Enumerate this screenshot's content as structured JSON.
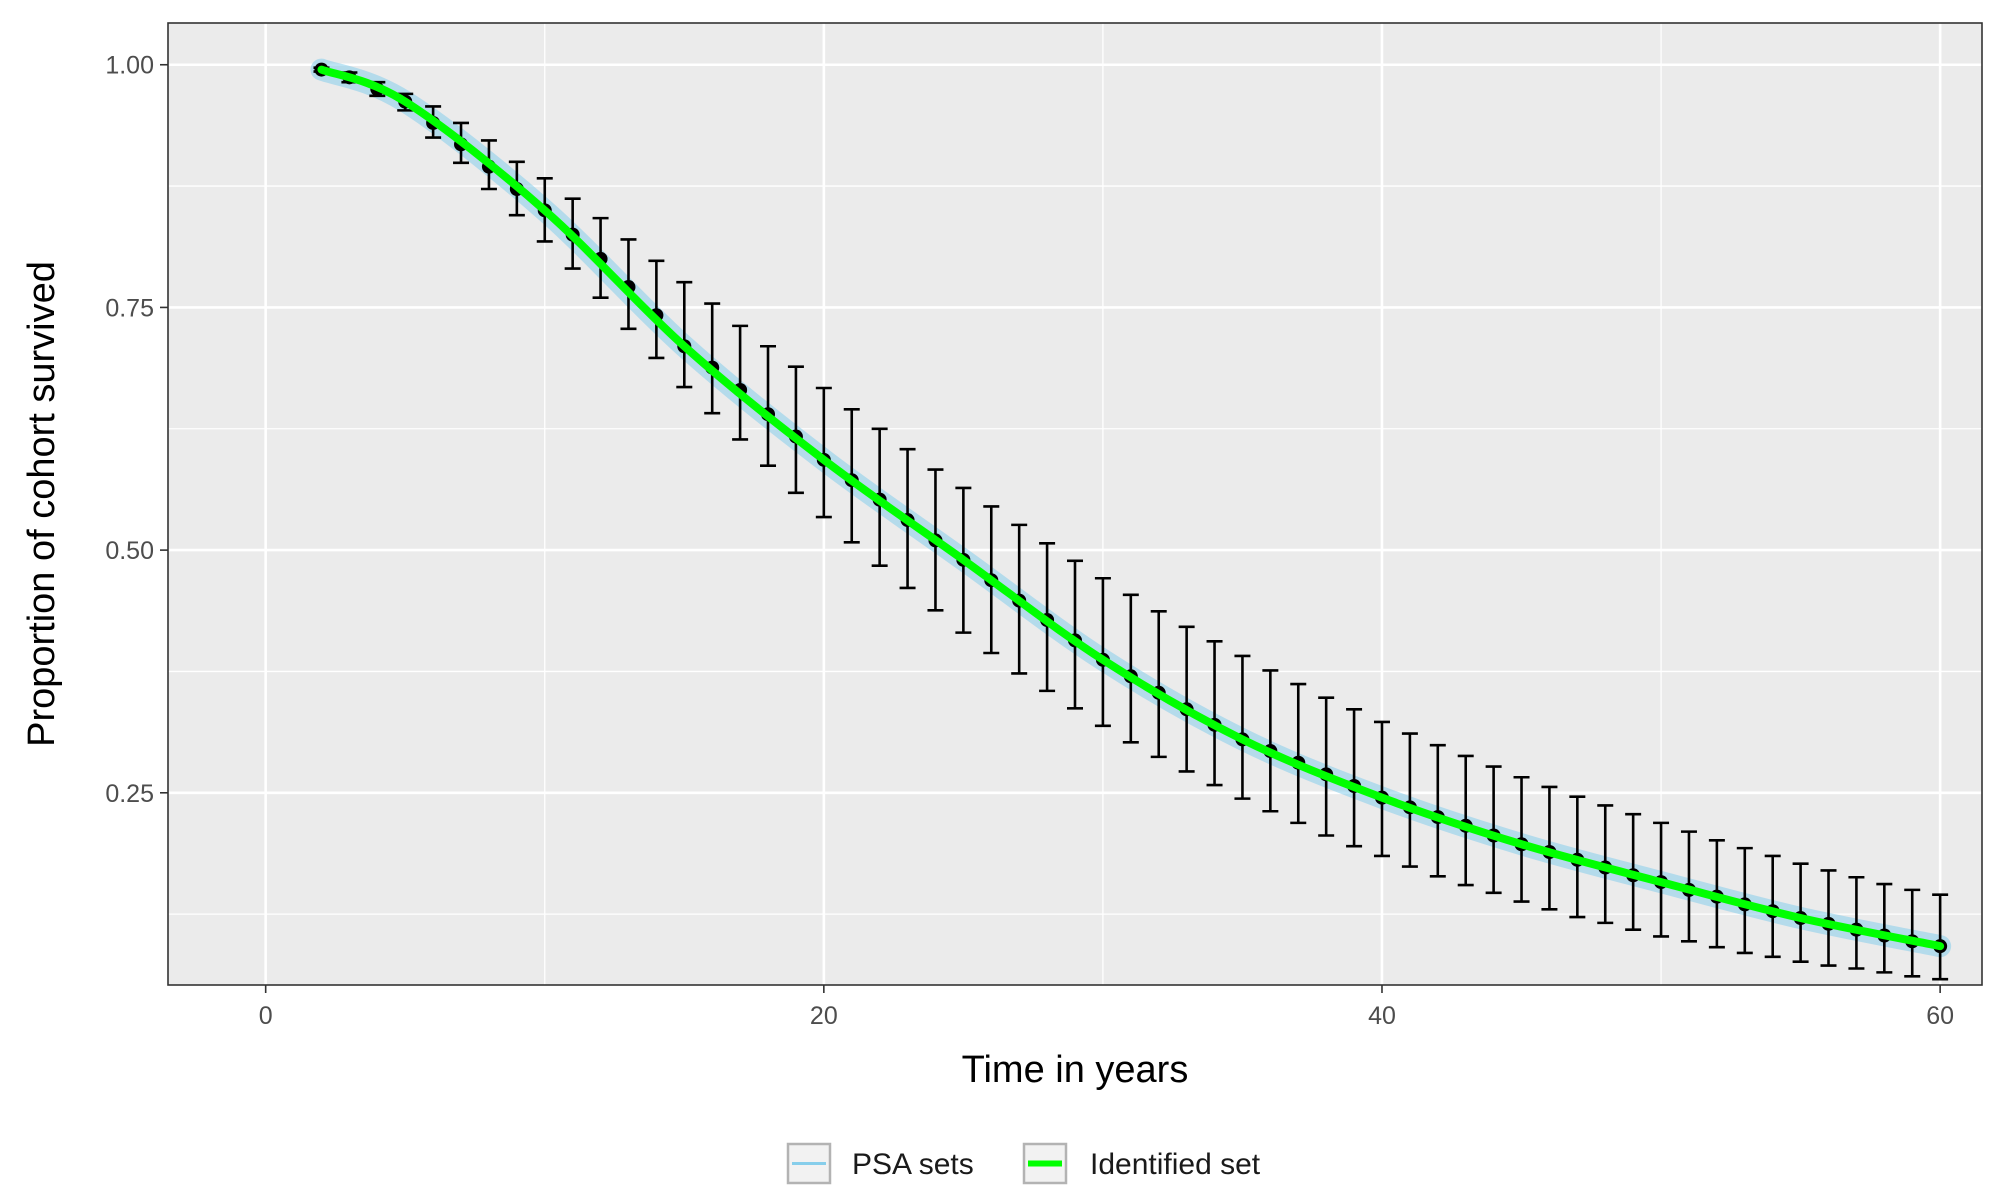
{
  "chart_data": {
    "type": "line",
    "xlabel": "Time in years",
    "ylabel": "Proportion of cohort survived",
    "xlim": [
      -3.5,
      61.5
    ],
    "ylim": [
      0.052,
      1.043
    ],
    "x_ticks": [
      0,
      20,
      40,
      60
    ],
    "x_tick_labels": [
      "0",
      "20",
      "40",
      "60"
    ],
    "y_ticks": [
      0.25,
      0.5,
      0.75,
      1.0
    ],
    "y_tick_labels": [
      "0.25",
      "0.50",
      "0.75",
      "1.00"
    ],
    "grid": true,
    "panel_background": "#EBEBEB",
    "legend_position": "bottom",
    "series": [
      {
        "name": "PSA sets",
        "color": "#87CEEB",
        "x": [
          2,
          5,
          10,
          15,
          20,
          25,
          30,
          35,
          40,
          45,
          50,
          55,
          60
        ],
        "values": [
          0.995,
          0.962,
          0.85,
          0.71,
          0.593,
          0.49,
          0.387,
          0.305,
          0.245,
          0.197,
          0.158,
          0.121,
          0.092
        ]
      },
      {
        "name": "Identified set",
        "color": "#00FF00",
        "x": [
          2,
          5,
          10,
          15,
          20,
          25,
          30,
          35,
          40,
          45,
          50,
          55,
          60
        ],
        "values": [
          0.995,
          0.962,
          0.85,
          0.71,
          0.593,
          0.49,
          0.387,
          0.305,
          0.245,
          0.197,
          0.158,
          0.121,
          0.092
        ]
      }
    ],
    "calibration_targets": {
      "x": [
        2,
        3,
        4,
        5,
        6,
        7,
        8,
        9,
        10,
        11,
        12,
        13,
        14,
        15,
        16,
        17,
        18,
        19,
        20,
        21,
        22,
        23,
        24,
        25,
        26,
        27,
        28,
        29,
        30,
        31,
        32,
        33,
        34,
        35,
        36,
        37,
        38,
        39,
        40,
        41,
        42,
        43,
        44,
        45,
        46,
        47,
        48,
        49,
        50,
        51,
        52,
        53,
        54,
        55,
        56,
        57,
        58,
        59,
        60
      ],
      "y": [
        0.995,
        0.987,
        0.975,
        0.962,
        0.94,
        0.918,
        0.895,
        0.872,
        0.85,
        0.825,
        0.8,
        0.771,
        0.742,
        0.71,
        0.688,
        0.665,
        0.64,
        0.617,
        0.593,
        0.572,
        0.552,
        0.531,
        0.51,
        0.49,
        0.469,
        0.448,
        0.428,
        0.407,
        0.387,
        0.37,
        0.353,
        0.336,
        0.32,
        0.305,
        0.293,
        0.281,
        0.269,
        0.257,
        0.245,
        0.235,
        0.225,
        0.216,
        0.206,
        0.197,
        0.189,
        0.181,
        0.173,
        0.165,
        0.158,
        0.15,
        0.143,
        0.135,
        0.128,
        0.121,
        0.115,
        0.109,
        0.103,
        0.097,
        0.092
      ],
      "lower": [
        0.993,
        0.982,
        0.968,
        0.953,
        0.925,
        0.899,
        0.872,
        0.845,
        0.818,
        0.79,
        0.76,
        0.728,
        0.698,
        0.668,
        0.641,
        0.614,
        0.587,
        0.559,
        0.534,
        0.508,
        0.484,
        0.461,
        0.438,
        0.415,
        0.394,
        0.373,
        0.355,
        0.337,
        0.319,
        0.302,
        0.287,
        0.272,
        0.258,
        0.244,
        0.231,
        0.219,
        0.206,
        0.195,
        0.185,
        0.174,
        0.164,
        0.155,
        0.147,
        0.138,
        0.13,
        0.122,
        0.116,
        0.109,
        0.102,
        0.097,
        0.091,
        0.085,
        0.081,
        0.076,
        0.072,
        0.069,
        0.065,
        0.061,
        0.058
      ],
      "upper": [
        0.997,
        0.992,
        0.982,
        0.97,
        0.957,
        0.94,
        0.922,
        0.9,
        0.883,
        0.862,
        0.842,
        0.82,
        0.798,
        0.776,
        0.754,
        0.731,
        0.71,
        0.689,
        0.667,
        0.645,
        0.625,
        0.604,
        0.583,
        0.564,
        0.545,
        0.526,
        0.507,
        0.489,
        0.471,
        0.454,
        0.437,
        0.421,
        0.406,
        0.391,
        0.376,
        0.362,
        0.348,
        0.336,
        0.323,
        0.311,
        0.299,
        0.288,
        0.277,
        0.266,
        0.256,
        0.246,
        0.237,
        0.228,
        0.219,
        0.21,
        0.201,
        0.193,
        0.185,
        0.177,
        0.17,
        0.163,
        0.156,
        0.15,
        0.145
      ]
    }
  }
}
